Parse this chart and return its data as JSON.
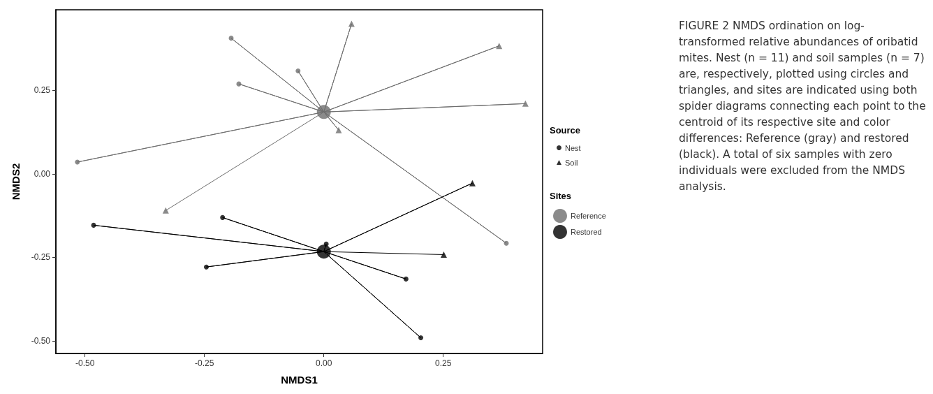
{
  "chart_data": {
    "type": "scatter",
    "xlabel": "NMDS1",
    "ylabel": "NMDS2",
    "legend_title": "Source",
    "annotations": [
      "Sites",
      "FIGURE 2  NMDS ordination on log-transformed relative abundances of oribatid mites. Nest (n = 11) and soil samples (n = 7) are, respectively, plotted using circles and triangles, and sites are indicated using both spider diagrams connecting each point to the centroid of its respective site and color differences: Reference (gray) and restored (black). A total of six samples with zero individuals were excluded from the NMDS analysis."
    ],
    "xlim": [
      -0.561,
      0.458
    ],
    "ylim": [
      -0.538,
      0.491
    ],
    "xticks": [
      {
        "value": -0.5,
        "label": "-0.50"
      },
      {
        "value": -0.25,
        "label": "-0.25"
      },
      {
        "value": 0,
        "label": "0.00"
      },
      {
        "value": 0.25,
        "label": "0.25"
      }
    ],
    "yticks": [
      {
        "value": -0.5,
        "label": "-0.50"
      },
      {
        "value": -0.25,
        "label": "-0.25"
      },
      {
        "value": 0,
        "label": "0.00"
      },
      {
        "value": 0.25,
        "label": "0.25"
      }
    ],
    "grid": false,
    "legend": "right",
    "series": [
      {
        "type": "line",
        "color": "#6e6e6e",
        "marker": "none",
        "line_style": "solid",
        "x": [
          0,
          -0.194,
          0,
          -0.054,
          0,
          -0.178,
          0,
          -0.516,
          0,
          0.382,
          0,
          0.058,
          0,
          0.367,
          0,
          0.422,
          0,
          0.031,
          0,
          -0.331
        ],
        "values": [
          0.185,
          0.406,
          0.185,
          0.308,
          0.185,
          0.269,
          0.185,
          0.035,
          0.185,
          -0.208,
          0.185,
          0.449,
          0.185,
          0.383,
          0.185,
          0.21,
          0.185,
          0.131,
          0.185,
          -0.11
        ]
      },
      {
        "type": "line",
        "color": "#000000",
        "marker": "none",
        "line_style": "solid",
        "x": [
          0,
          -0.482,
          0,
          -0.212,
          0,
          0.005,
          0,
          -0.246,
          0,
          0.172,
          0,
          0.203,
          0,
          0.311,
          0,
          0.251
        ],
        "values": [
          -0.233,
          -0.154,
          -0.233,
          -0.131,
          -0.233,
          -0.21,
          -0.233,
          -0.279,
          -0.233,
          -0.315,
          -0.233,
          -0.491,
          -0.233,
          -0.028,
          -0.233,
          -0.242
        ]
      },
      {
        "name": "Nest",
        "color": "#000000",
        "marker": "circle",
        "x": [
          -0.194,
          -0.054,
          -0.178,
          -0.516,
          0.382,
          -0.482,
          -0.212,
          0.005,
          -0.246,
          0.172,
          0.203
        ],
        "values": [
          0.406,
          0.308,
          0.269,
          0.035,
          -0.208,
          -0.154,
          -0.131,
          -0.21,
          -0.279,
          -0.315,
          -0.491
        ],
        "colors": [
          "#6e6e6e",
          "#6e6e6e",
          "#6e6e6e",
          "#6e6e6e",
          "#6e6e6e",
          "#000000",
          "#000000",
          "#000000",
          "#000000",
          "#000000",
          "#000000"
        ]
      },
      {
        "name": "Soil",
        "color": "#000000",
        "marker": "triangle",
        "x": [
          0.058,
          0.367,
          0.422,
          0.031,
          -0.331,
          0.311,
          0.251
        ],
        "values": [
          0.449,
          0.383,
          0.21,
          0.131,
          -0.11,
          -0.028,
          -0.242
        ],
        "colors": [
          "#6e6e6e",
          "#6e6e6e",
          "#6e6e6e",
          "#6e6e6e",
          "#6e6e6e",
          "#000000",
          "#000000"
        ]
      },
      {
        "name": "Reference",
        "color": "#6e6e6e",
        "marker": "circle",
        "x": [
          0
        ],
        "values": [
          0.185
        ]
      },
      {
        "name": "Restored",
        "color": "#000000",
        "marker": "circle",
        "x": [
          0
        ],
        "values": [
          -0.233
        ]
      }
    ]
  }
}
